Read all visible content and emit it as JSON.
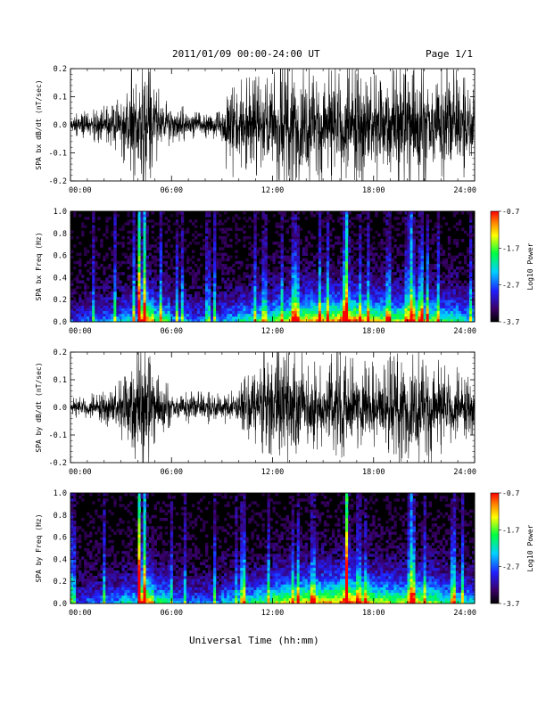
{
  "header": {
    "title": "2011/01/09  00:00-24:00 UT",
    "page": "Page 1/1"
  },
  "footer": {
    "xlabel": "Universal Time (hh:mm)"
  },
  "chart_data": [
    {
      "type": "line",
      "ylabel": "SPA bx dB/dt (nT/sec)",
      "xlim": [
        0,
        24
      ],
      "ylim": [
        -0.2,
        0.2
      ],
      "x_tick_labels": [
        "00:00",
        "06:00",
        "12:00",
        "18:00",
        "24:00"
      ],
      "y_tick_labels": [
        "-0.2",
        "-0.1",
        "0.0",
        "0.1",
        "0.2"
      ],
      "amplitude_envelope": {
        "x": [
          0,
          1,
          2,
          3,
          3.8,
          4.2,
          4.6,
          5,
          6,
          7,
          8,
          9,
          9.3,
          9.6,
          10,
          11,
          12,
          13,
          14,
          15,
          16,
          17,
          18,
          19,
          20,
          21,
          22,
          23,
          24
        ],
        "y": [
          0.04,
          0.05,
          0.06,
          0.09,
          0.21,
          0.21,
          0.21,
          0.14,
          0.08,
          0.05,
          0.04,
          0.05,
          0.18,
          0.16,
          0.13,
          0.16,
          0.2,
          0.21,
          0.21,
          0.19,
          0.21,
          0.2,
          0.18,
          0.19,
          0.21,
          0.2,
          0.19,
          0.17,
          0.14
        ]
      }
    },
    {
      "type": "heatmap",
      "ylabel": "SPA bx Freq (Hz)",
      "xlim": [
        0,
        24
      ],
      "ylim": [
        0,
        1.0
      ],
      "x_tick_labels": [
        "00:00",
        "06:00",
        "12:00",
        "18:00",
        "24:00"
      ],
      "y_tick_labels": [
        "0.0",
        "0.2",
        "0.4",
        "0.6",
        "0.8",
        "1.0"
      ],
      "colorbar": {
        "label": "Log10 Power",
        "range": [
          -3.7,
          -0.7
        ],
        "tick_labels": [
          "-0.7",
          "-1.7",
          "-2.7",
          "-3.7"
        ]
      },
      "activity_by_hour": [
        0.3,
        0.35,
        0.4,
        0.5,
        0.85,
        0.6,
        0.4,
        0.35,
        0.35,
        0.45,
        0.55,
        0.6,
        0.7,
        0.8,
        0.85,
        0.85,
        0.95,
        0.85,
        0.75,
        0.7,
        0.8,
        0.7,
        0.6,
        0.5
      ],
      "bright_events_hours": [
        4.1,
        4.4,
        16.4,
        20.2
      ]
    },
    {
      "type": "line",
      "ylabel": "SPA by dB/dt (nT/sec)",
      "xlim": [
        0,
        24
      ],
      "ylim": [
        -0.2,
        0.2
      ],
      "x_tick_labels": [
        "00:00",
        "06:00",
        "12:00",
        "18:00",
        "24:00"
      ],
      "y_tick_labels": [
        "-0.2",
        "-0.1",
        "0.0",
        "0.1",
        "0.2"
      ],
      "amplitude_envelope": {
        "x": [
          0,
          1,
          2,
          3,
          3.8,
          4.2,
          4.6,
          5,
          6,
          7,
          8,
          9,
          10,
          11,
          11.5,
          12,
          13,
          14,
          15,
          16,
          17,
          18,
          19,
          20,
          21,
          22,
          23,
          24
        ],
        "y": [
          0.03,
          0.04,
          0.05,
          0.1,
          0.21,
          0.21,
          0.21,
          0.12,
          0.06,
          0.05,
          0.05,
          0.06,
          0.08,
          0.12,
          0.2,
          0.21,
          0.21,
          0.16,
          0.14,
          0.21,
          0.14,
          0.15,
          0.16,
          0.18,
          0.2,
          0.15,
          0.12,
          0.08
        ]
      }
    },
    {
      "type": "heatmap",
      "ylabel": "SPA by Freq (Hz)",
      "xlim": [
        0,
        24
      ],
      "ylim": [
        0,
        1.0
      ],
      "x_tick_labels": [
        "00:00",
        "06:00",
        "12:00",
        "18:00",
        "24:00"
      ],
      "y_tick_labels": [
        "0.0",
        "0.2",
        "0.4",
        "0.6",
        "0.8",
        "1.0"
      ],
      "colorbar": {
        "label": "Log10 Power",
        "range": [
          -3.7,
          -0.7
        ],
        "tick_labels": [
          "-0.7",
          "-1.7",
          "-2.7",
          "-3.7"
        ]
      },
      "activity_by_hour": [
        0.3,
        0.35,
        0.4,
        0.5,
        0.85,
        0.6,
        0.4,
        0.35,
        0.35,
        0.45,
        0.55,
        0.6,
        0.75,
        0.8,
        0.85,
        0.85,
        0.95,
        0.85,
        0.75,
        0.7,
        0.8,
        0.7,
        0.6,
        0.5
      ],
      "bright_events_hours": [
        4.1,
        4.4,
        16.4,
        20.2
      ]
    }
  ]
}
